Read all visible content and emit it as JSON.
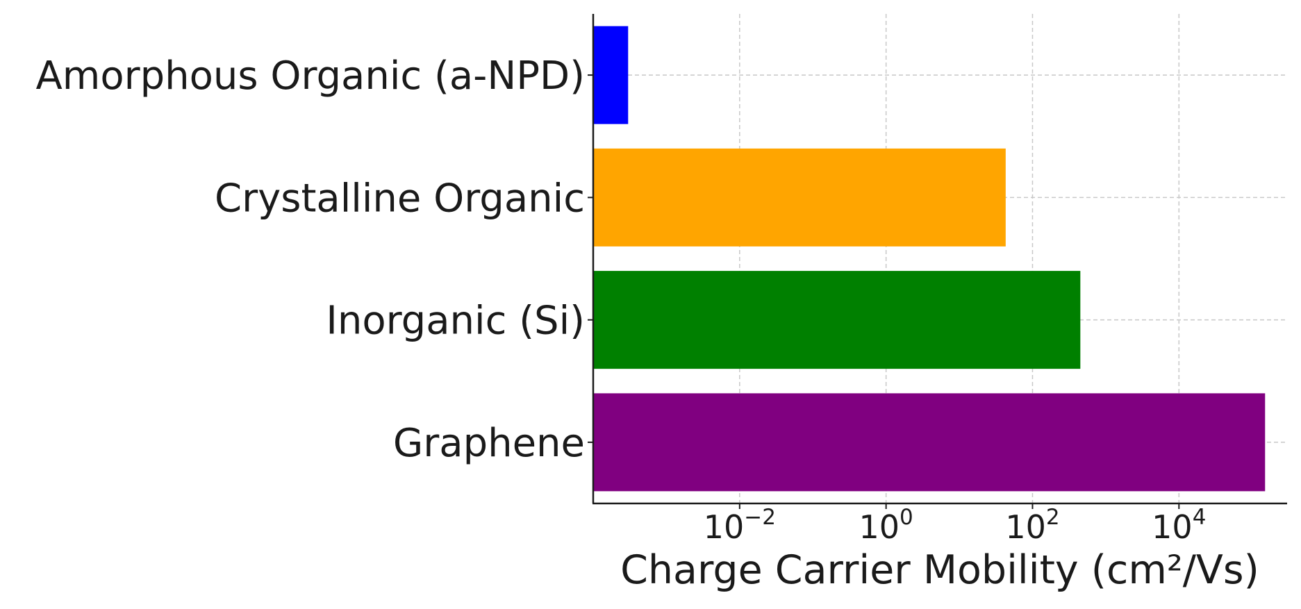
{
  "chart_data": {
    "type": "bar",
    "orientation": "horizontal",
    "title": "",
    "xlabel": "Charge Carrier Mobility (cm²/Vs)",
    "ylabel": "",
    "x_scale": "log",
    "xlim": [
      0.0001,
      300000
    ],
    "x_ticks": [
      {
        "value": 0.01,
        "base": "10",
        "exp": "−2"
      },
      {
        "value": 1,
        "base": "10",
        "exp": "0"
      },
      {
        "value": 100,
        "base": "10",
        "exp": "2"
      },
      {
        "value": 10000,
        "base": "10",
        "exp": "4"
      }
    ],
    "grid": true,
    "legend": "none",
    "bars": [
      {
        "category": "Amorphous Organic (a-NPD)",
        "value": 0.0003,
        "color": "#0000ff"
      },
      {
        "category": "Crystalline Organic",
        "value": 43,
        "color": "#ffa500"
      },
      {
        "category": "Inorganic (Si)",
        "value": 450,
        "color": "#008000"
      },
      {
        "category": "Graphene",
        "value": 150000,
        "color": "#800080"
      }
    ]
  }
}
